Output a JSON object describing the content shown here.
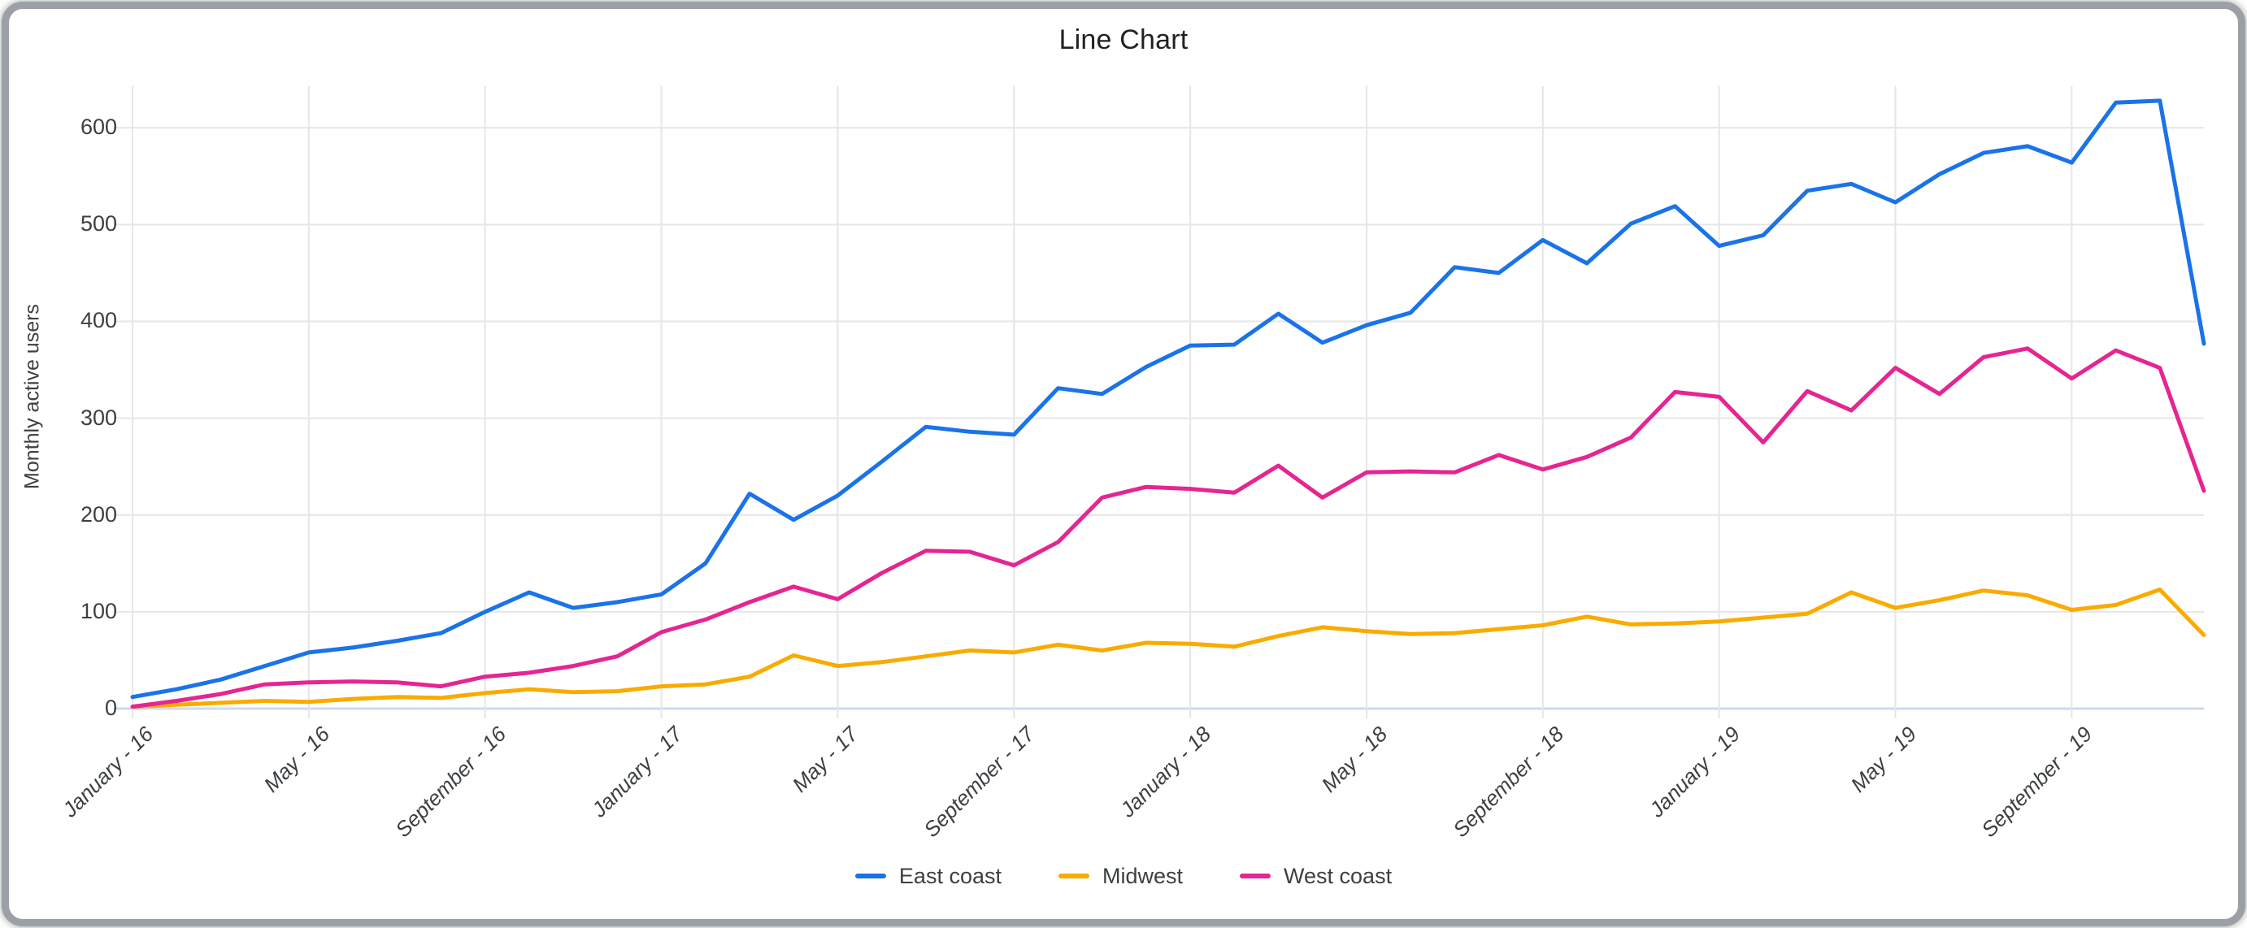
{
  "title": "Line Chart",
  "window": {
    "border_color": "#9aa0a6",
    "background": "#ffffff"
  },
  "chart_data": {
    "type": "line",
    "title": "Line Chart",
    "xlabel": "",
    "ylabel": "Monthly active users",
    "ylim": [
      0,
      643
    ],
    "yticks": [
      0,
      100,
      200,
      300,
      400,
      500,
      600
    ],
    "grid": true,
    "legend_position": "bottom",
    "grid_color": "#e6e6e6",
    "baseline_color": "#ccd9f0",
    "tick_text_color": "#3c4043",
    "title_color": "#202124",
    "x_points_per_series": 48,
    "x_unit": "month",
    "x_ticks": [
      {
        "index": 0,
        "label": "January - 16"
      },
      {
        "index": 4,
        "label": "May - 16"
      },
      {
        "index": 8,
        "label": "September - 16"
      },
      {
        "index": 12,
        "label": "January - 17"
      },
      {
        "index": 16,
        "label": "May - 17"
      },
      {
        "index": 20,
        "label": "September - 17"
      },
      {
        "index": 24,
        "label": "January - 18"
      },
      {
        "index": 28,
        "label": "May - 18"
      },
      {
        "index": 32,
        "label": "September - 18"
      },
      {
        "index": 36,
        "label": "January - 19"
      },
      {
        "index": 40,
        "label": "May - 19"
      },
      {
        "index": 44,
        "label": "September - 19"
      }
    ],
    "series": [
      {
        "name": "East coast",
        "color": "#1A73E8",
        "values": [
          12,
          20,
          30,
          44,
          58,
          63,
          70,
          78,
          100,
          120,
          104,
          110,
          118,
          150,
          222,
          195,
          220,
          255,
          291,
          286,
          283,
          331,
          325,
          353,
          375,
          376,
          408,
          378,
          396,
          409,
          456,
          450,
          484,
          460,
          501,
          519,
          478,
          489,
          535,
          542,
          523,
          552,
          574,
          581,
          564,
          626,
          628,
          377
        ]
      },
      {
        "name": "Midwest",
        "color": "#F9AB00",
        "values": [
          2,
          4,
          6,
          8,
          7,
          10,
          12,
          11,
          16,
          20,
          17,
          18,
          23,
          25,
          33,
          55,
          44,
          48,
          54,
          60,
          58,
          66,
          60,
          68,
          67,
          64,
          75,
          84,
          80,
          77,
          78,
          82,
          86,
          95,
          87,
          88,
          90,
          94,
          98,
          120,
          104,
          112,
          122,
          117,
          102,
          107,
          123,
          76
        ]
      },
      {
        "name": "West coast",
        "color": "#E52592",
        "values": [
          2,
          8,
          15,
          25,
          27,
          28,
          27,
          23,
          33,
          37,
          44,
          54,
          79,
          92,
          110,
          126,
          113,
          140,
          163,
          162,
          148,
          172,
          218,
          229,
          227,
          223,
          251,
          218,
          244,
          245,
          244,
          262,
          247,
          260,
          280,
          327,
          322,
          275,
          328,
          308,
          352,
          325,
          363,
          372,
          341,
          370,
          352,
          225
        ]
      }
    ]
  }
}
